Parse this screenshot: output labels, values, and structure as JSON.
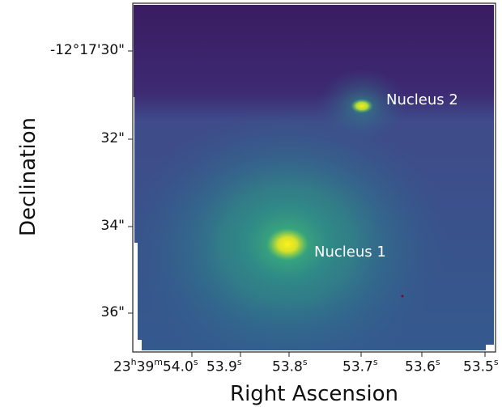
{
  "figure": {
    "xlabel": "Right Ascension",
    "ylabel": "Declination",
    "yticks": [
      "-12°17'30\"",
      "32\"",
      "34\"",
      "36\""
    ],
    "xticks": [
      {
        "main": "23",
        "s1": "h",
        "mid1": "39",
        "s2": "m",
        "mid2": "54.0",
        "s3": "s"
      },
      {
        "main": "53.9",
        "s1": "s"
      },
      {
        "main": "53.8",
        "s1": "s"
      },
      {
        "main": "53.7",
        "s1": "s"
      },
      {
        "main": "53.6",
        "s1": "s"
      },
      {
        "main": "53.5",
        "s1": "s"
      }
    ],
    "annotations": [
      "Nucleus 1",
      "Nucleus 2"
    ],
    "colormap": [
      "#3b1c62",
      "#3f3f86",
      "#2f6a8d",
      "#2a8c8b",
      "#3bb07a",
      "#a6d63b",
      "#f5e51f"
    ]
  }
}
